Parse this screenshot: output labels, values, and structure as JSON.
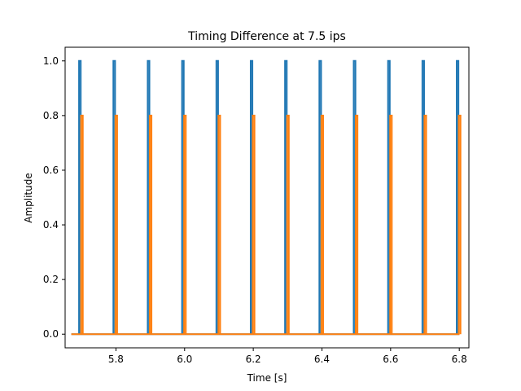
{
  "chart_data": {
    "type": "line",
    "title": "Timing Difference at 7.5 ips",
    "xlabel": "Time [s]",
    "ylabel": "Amplitude",
    "xlim": [
      5.652,
      6.828
    ],
    "ylim": [
      -0.05,
      1.05
    ],
    "x_start": 5.67,
    "x_end": 6.8,
    "grid": false,
    "legend": "none",
    "xticks": [
      5.8,
      6.0,
      6.2,
      6.4,
      6.6,
      6.8
    ],
    "xtick_labels": [
      "5.8",
      "6.0",
      "6.2",
      "6.4",
      "6.6",
      "6.8"
    ],
    "yticks": [
      0.0,
      0.2,
      0.4,
      0.6,
      0.8,
      1.0
    ],
    "ytick_labels": [
      "0.0",
      "0.2",
      "0.4",
      "0.6",
      "0.8",
      "1.0"
    ],
    "series": [
      {
        "color": "#1f77b4",
        "pulse_amplitude": 1.0,
        "baseline": 0.0,
        "pulse_times": [
          5.695,
          5.795,
          5.895,
          5.995,
          6.095,
          6.195,
          6.295,
          6.395,
          6.495,
          6.595,
          6.695,
          6.795
        ]
      },
      {
        "color": "#ff7f0e",
        "pulse_amplitude": 0.8,
        "baseline": 0.0,
        "pulse_times": [
          5.701,
          5.801,
          5.901,
          6.001,
          6.101,
          6.201,
          6.301,
          6.401,
          6.501,
          6.601,
          6.701,
          6.801
        ]
      }
    ]
  }
}
